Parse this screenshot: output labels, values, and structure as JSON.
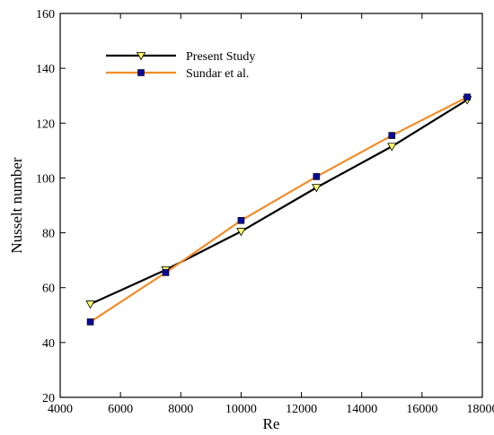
{
  "chart_data": {
    "type": "line",
    "title": "",
    "xlabel": "Re",
    "ylabel": "Nusselt number",
    "xlim": [
      4000,
      18000
    ],
    "ylim": [
      20,
      160
    ],
    "xticks": [
      4000,
      6000,
      8000,
      10000,
      12000,
      14000,
      16000,
      18000
    ],
    "yticks": [
      20,
      40,
      60,
      80,
      100,
      120,
      140,
      160
    ],
    "grid": false,
    "legend_position": "top-left",
    "series": [
      {
        "name": "Present Study",
        "x": [
          5000,
          7500,
          10000,
          12500,
          15000,
          17500
        ],
        "y": [
          54,
          66.5,
          80.5,
          96.5,
          111.5,
          128.5
        ],
        "line_color": "#000000",
        "marker": "triangle-down",
        "marker_fill": "#ffff66"
      },
      {
        "name": "Sundar et al.",
        "x": [
          5000,
          7500,
          10000,
          12500,
          15000,
          17500
        ],
        "y": [
          47.5,
          65.5,
          84.5,
          100.5,
          115.5,
          129.5
        ],
        "line_color": "#f28c28",
        "marker": "square",
        "marker_fill": "#0a0a9a"
      }
    ]
  }
}
